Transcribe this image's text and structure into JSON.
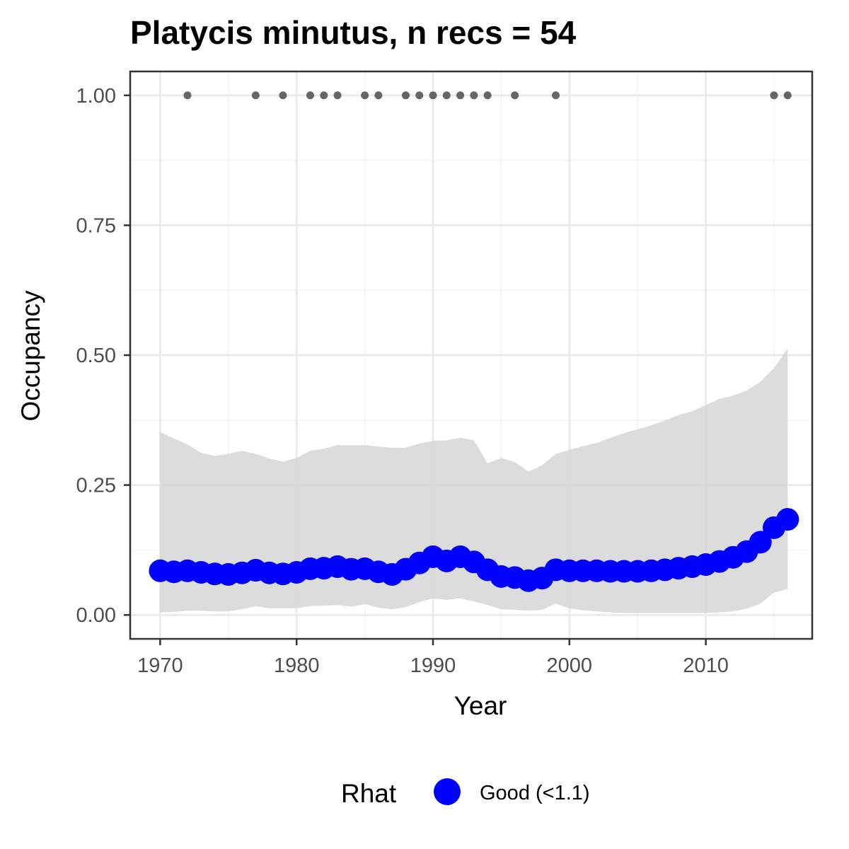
{
  "chart_data": {
    "type": "line",
    "title": "Platycis minutus, n recs = 54",
    "xlabel": "Year",
    "ylabel": "Occupancy",
    "xlim": [
      1967.8,
      2017.8
    ],
    "ylim": [
      -0.046,
      1.046
    ],
    "x_ticks": [
      1970,
      1980,
      1990,
      2000,
      2010
    ],
    "x_tick_labels": [
      "1970",
      "1980",
      "1990",
      "2000",
      "2010"
    ],
    "y_ticks": [
      0,
      0.25,
      0.5,
      0.75,
      1
    ],
    "y_tick_labels": [
      "0.00",
      "0.25",
      "0.50",
      "0.75",
      "1.00"
    ],
    "grid": true,
    "legend": {
      "title": "Rhat",
      "position": "bottom",
      "entries": [
        {
          "label": "Good (<1.1)",
          "color": "#0000ff"
        }
      ]
    },
    "colors": {
      "point": "#0000ff",
      "ribbon": "#d6d6d6",
      "records": "#666666",
      "panel_border": "#333333",
      "grid_major": "#ebebeb",
      "grid_minor": "#f4f4f4"
    },
    "x": [
      1970,
      1971,
      1972,
      1973,
      1974,
      1975,
      1976,
      1977,
      1978,
      1979,
      1980,
      1981,
      1982,
      1983,
      1984,
      1985,
      1986,
      1987,
      1988,
      1989,
      1990,
      1991,
      1992,
      1993,
      1994,
      1995,
      1996,
      1997,
      1998,
      1999,
      2000,
      2001,
      2002,
      2003,
      2004,
      2005,
      2006,
      2007,
      2008,
      2009,
      2010,
      2011,
      2012,
      2013,
      2014,
      2015,
      2016
    ],
    "series": [
      {
        "values": [
          0.085,
          0.083,
          0.085,
          0.082,
          0.079,
          0.078,
          0.081,
          0.086,
          0.081,
          0.079,
          0.082,
          0.089,
          0.09,
          0.093,
          0.088,
          0.089,
          0.083,
          0.078,
          0.088,
          0.1,
          0.112,
          0.104,
          0.112,
          0.102,
          0.087,
          0.074,
          0.072,
          0.066,
          0.071,
          0.087,
          0.085,
          0.085,
          0.085,
          0.084,
          0.084,
          0.084,
          0.085,
          0.087,
          0.09,
          0.093,
          0.097,
          0.103,
          0.111,
          0.122,
          0.14,
          0.168,
          0.184
        ]
      }
    ],
    "ribbon": {
      "upper": [
        0.352,
        0.34,
        0.328,
        0.312,
        0.306,
        0.31,
        0.316,
        0.31,
        0.301,
        0.295,
        0.302,
        0.316,
        0.32,
        0.327,
        0.327,
        0.327,
        0.324,
        0.322,
        0.322,
        0.33,
        0.335,
        0.336,
        0.341,
        0.336,
        0.292,
        0.302,
        0.294,
        0.276,
        0.288,
        0.31,
        0.318,
        0.325,
        0.331,
        0.341,
        0.35,
        0.357,
        0.365,
        0.374,
        0.385,
        0.392,
        0.404,
        0.416,
        0.422,
        0.432,
        0.449,
        0.475,
        0.513
      ],
      "lower": [
        0.005,
        0.006,
        0.008,
        0.008,
        0.007,
        0.007,
        0.011,
        0.017,
        0.013,
        0.013,
        0.013,
        0.017,
        0.018,
        0.019,
        0.016,
        0.021,
        0.014,
        0.011,
        0.015,
        0.025,
        0.032,
        0.029,
        0.032,
        0.026,
        0.019,
        0.011,
        0.01,
        0.008,
        0.01,
        0.022,
        0.013,
        0.009,
        0.007,
        0.005,
        0.004,
        0.004,
        0.004,
        0.004,
        0.004,
        0.004,
        0.004,
        0.005,
        0.007,
        0.012,
        0.022,
        0.043,
        0.05
      ]
    },
    "records": {
      "x": [
        1972,
        1977,
        1979,
        1981,
        1982,
        1983,
        1985,
        1986,
        1988,
        1989,
        1990,
        1991,
        1992,
        1993,
        1994,
        1996,
        1999,
        2015,
        2016
      ],
      "y": [
        1,
        1,
        1,
        1,
        1,
        1,
        1,
        1,
        1,
        1,
        1,
        1,
        1,
        1,
        1,
        1,
        1,
        1,
        1
      ]
    }
  }
}
